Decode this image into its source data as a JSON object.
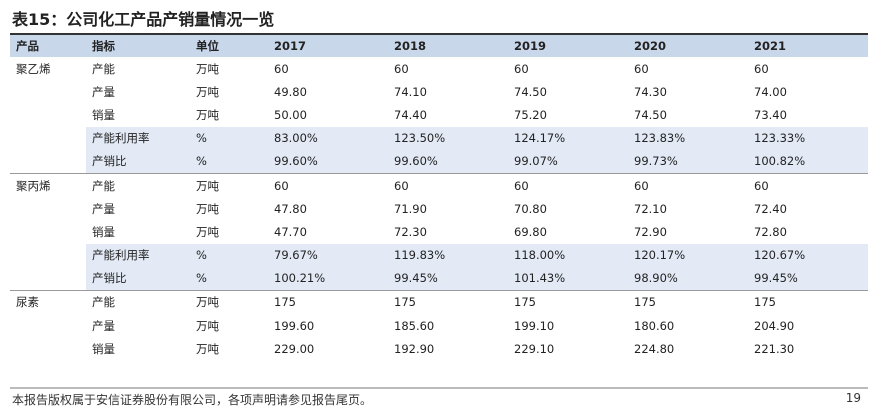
{
  "title": "表15：公司化工产品产销量情况一览",
  "headers": [
    "产品",
    "指标",
    "单位",
    "2017",
    "2018",
    "2019",
    "2020",
    "2021"
  ],
  "rows": [
    [
      "聚乙烯",
      "产能",
      "万吨",
      "60",
      "60",
      "60",
      "60",
      "60"
    ],
    [
      "",
      "产量",
      "万吨",
      "49.80",
      "74.10",
      "74.50",
      "74.30",
      "74.00"
    ],
    [
      "",
      "销量",
      "万吨",
      "50.00",
      "74.40",
      "75.20",
      "74.50",
      "73.40"
    ],
    [
      "",
      "产能利用率",
      "%",
      "83.00%",
      "123.50%",
      "124.17%",
      "123.83%",
      "123.33%"
    ],
    [
      "",
      "产销比",
      "%",
      "99.60%",
      "99.60%",
      "99.07%",
      "99.73%",
      "100.82%"
    ],
    [
      "聚丙烯",
      "产能",
      "万吨",
      "60",
      "60",
      "60",
      "60",
      "60"
    ],
    [
      "",
      "产量",
      "万吨",
      "47.80",
      "71.90",
      "70.80",
      "72.10",
      "72.40"
    ],
    [
      "",
      "销量",
      "万吨",
      "47.70",
      "72.30",
      "69.80",
      "72.90",
      "72.80"
    ],
    [
      "",
      "产能利用率",
      "%",
      "79.67%",
      "119.83%",
      "118.00%",
      "120.17%",
      "120.67%"
    ],
    [
      "",
      "产销比",
      "%",
      "100.21%",
      "99.45%",
      "101.43%",
      "98.90%",
      "99.45%"
    ],
    [
      "尿素",
      "产能",
      "万吨",
      "175",
      "175",
      "175",
      "175",
      "175"
    ],
    [
      "",
      "产量",
      "万吨",
      "199.60",
      "185.60",
      "199.10",
      "180.60",
      "204.90"
    ],
    [
      "",
      "销量",
      "万吨",
      "229.00",
      "192.90",
      "229.10",
      "224.80",
      "221.30"
    ]
  ],
  "footer": "本报告版权属于安信证券股份有限公司，各项声明请参见报告尾页。",
  "page_number": "19"
}
